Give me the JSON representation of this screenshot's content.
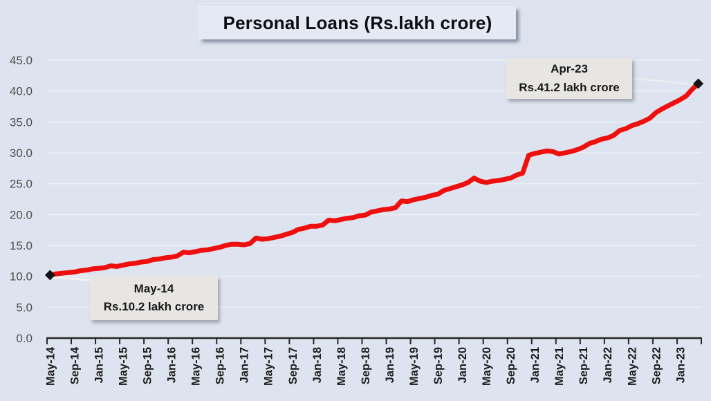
{
  "chart": {
    "title": "Personal Loans (Rs.lakh crore)",
    "annotations": {
      "start": {
        "line1": "May-14",
        "line2": "Rs.10.2 lakh crore"
      },
      "end": {
        "line1": "Apr-23",
        "line2": "Rs.41.2 lakh crore"
      }
    }
  },
  "colors": {
    "background": "#dee4ef",
    "title_box": "#e4e9f3",
    "callout_box": "#e8e6e2",
    "line_red": "#ee0f0f",
    "marker_black": "#141414",
    "gridline": "#eaedf4",
    "axis": "#262626",
    "y_label": "#4d4d4d",
    "x_label": "#1c1c1c"
  },
  "chart_data": {
    "type": "line",
    "title": "Personal Loans (Rs.lakh crore)",
    "unit": "Rs. lakh crore",
    "legend": "none",
    "grid": "horizontal",
    "ylim": [
      0,
      45
    ],
    "y_tick_labels": [
      "0.0",
      "5.0",
      "10.0",
      "15.0",
      "20.0",
      "25.0",
      "30.0",
      "35.0",
      "40.0",
      "45.0"
    ],
    "x_tick_labels": [
      "May-14",
      "Sep-14",
      "Jan-15",
      "May-15",
      "Sep-15",
      "Jan-16",
      "May-16",
      "Sep-16",
      "Jan-17",
      "May-17",
      "Sep-17",
      "Jan-18",
      "May-18",
      "Sep-18",
      "Jan-19",
      "May-19",
      "Sep-19",
      "Jan-20",
      "May-20",
      "Sep-20",
      "Jan-21",
      "May-21",
      "Sep-21",
      "Jan-22",
      "May-22",
      "Sep-22",
      "Jan-23"
    ],
    "x_ticks_every_n_months": 4,
    "months": [
      "May-14",
      "Jun-14",
      "Jul-14",
      "Aug-14",
      "Sep-14",
      "Oct-14",
      "Nov-14",
      "Dec-14",
      "Jan-15",
      "Feb-15",
      "Mar-15",
      "Apr-15",
      "May-15",
      "Jun-15",
      "Jul-15",
      "Aug-15",
      "Sep-15",
      "Oct-15",
      "Nov-15",
      "Dec-15",
      "Jan-16",
      "Feb-16",
      "Mar-16",
      "Apr-16",
      "May-16",
      "Jun-16",
      "Jul-16",
      "Aug-16",
      "Sep-16",
      "Oct-16",
      "Nov-16",
      "Dec-16",
      "Jan-17",
      "Feb-17",
      "Mar-17",
      "Apr-17",
      "May-17",
      "Jun-17",
      "Jul-17",
      "Aug-17",
      "Sep-17",
      "Oct-17",
      "Nov-17",
      "Dec-17",
      "Jan-18",
      "Feb-18",
      "Mar-18",
      "Apr-18",
      "May-18",
      "Jun-18",
      "Jul-18",
      "Aug-18",
      "Sep-18",
      "Oct-18",
      "Nov-18",
      "Dec-18",
      "Jan-19",
      "Feb-19",
      "Mar-19",
      "Apr-19",
      "May-19",
      "Jun-19",
      "Jul-19",
      "Aug-19",
      "Sep-19",
      "Oct-19",
      "Nov-19",
      "Dec-19",
      "Jan-20",
      "Feb-20",
      "Mar-20",
      "Apr-20",
      "May-20",
      "Jun-20",
      "Jul-20",
      "Aug-20",
      "Sep-20",
      "Oct-20",
      "Nov-20",
      "Dec-20",
      "Jan-21",
      "Feb-21",
      "Mar-21",
      "Apr-21",
      "May-21",
      "Jun-21",
      "Jul-21",
      "Aug-21",
      "Sep-21",
      "Oct-21",
      "Nov-21",
      "Dec-21",
      "Jan-22",
      "Feb-22",
      "Mar-22",
      "Apr-22",
      "May-22",
      "Jun-22",
      "Jul-22",
      "Aug-22",
      "Sep-22",
      "Oct-22",
      "Nov-22",
      "Dec-22",
      "Jan-23",
      "Feb-23",
      "Mar-23",
      "Apr-23"
    ],
    "values": [
      10.2,
      10.4,
      10.5,
      10.6,
      10.7,
      10.9,
      11.0,
      11.2,
      11.3,
      11.4,
      11.7,
      11.6,
      11.8,
      12.0,
      12.1,
      12.3,
      12.4,
      12.7,
      12.8,
      13.0,
      13.1,
      13.3,
      13.9,
      13.8,
      14.0,
      14.2,
      14.3,
      14.5,
      14.7,
      15.0,
      15.2,
      15.2,
      15.1,
      15.3,
      16.2,
      16.0,
      16.1,
      16.3,
      16.5,
      16.8,
      17.1,
      17.6,
      17.8,
      18.1,
      18.1,
      18.3,
      19.1,
      19.0,
      19.2,
      19.4,
      19.5,
      19.8,
      19.9,
      20.4,
      20.6,
      20.8,
      20.9,
      21.1,
      22.2,
      22.1,
      22.4,
      22.6,
      22.8,
      23.1,
      23.3,
      23.9,
      24.2,
      24.5,
      24.8,
      25.2,
      25.9,
      25.4,
      25.2,
      25.4,
      25.5,
      25.7,
      25.9,
      26.4,
      26.7,
      29.6,
      29.9,
      30.1,
      30.3,
      30.2,
      29.8,
      30.0,
      30.2,
      30.5,
      30.9,
      31.5,
      31.8,
      32.2,
      32.4,
      32.8,
      33.6,
      33.9,
      34.4,
      34.7,
      35.1,
      35.6,
      36.5,
      37.1,
      37.6,
      38.1,
      38.6,
      39.2,
      40.3,
      41.2
    ],
    "markers": [
      {
        "month": "May-14",
        "value": 10.2,
        "shape": "diamond"
      },
      {
        "month": "Apr-23",
        "value": 41.2,
        "shape": "diamond"
      }
    ]
  }
}
